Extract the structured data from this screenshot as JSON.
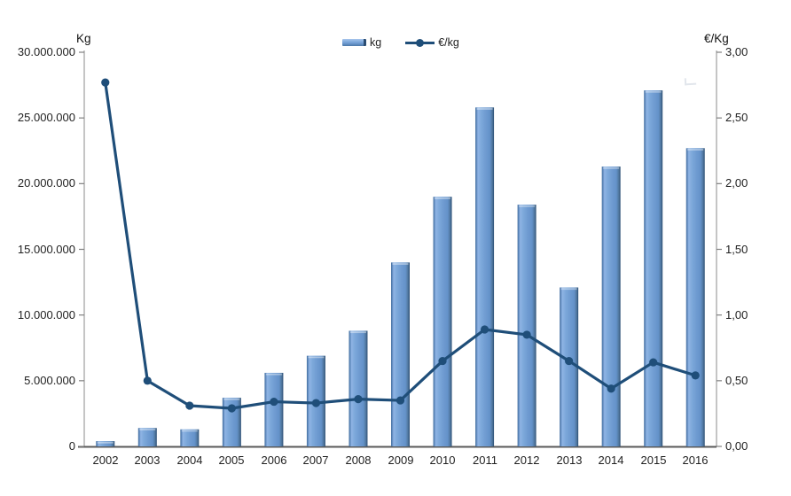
{
  "chart_data": {
    "type": "bar",
    "subtype": "combo-bar-line",
    "title": "",
    "categories": [
      "2002",
      "2003",
      "2004",
      "2005",
      "2006",
      "2007",
      "2008",
      "2009",
      "2010",
      "2011",
      "2012",
      "2013",
      "2014",
      "2015",
      "2016"
    ],
    "series": [
      {
        "name": "kg",
        "type": "bar",
        "axis": "left",
        "values": [
          400000,
          1400000,
          1300000,
          3700000,
          5600000,
          6900000,
          8800000,
          14000000,
          19000000,
          25800000,
          18400000,
          12100000,
          21300000,
          27100000,
          22700000
        ]
      },
      {
        "name": "€/kg",
        "type": "line",
        "axis": "right",
        "values": [
          2.77,
          0.5,
          0.31,
          0.29,
          0.34,
          0.33,
          0.36,
          0.35,
          0.65,
          0.89,
          0.85,
          0.65,
          0.44,
          0.64,
          0.54
        ]
      }
    ],
    "xlabel": "",
    "ylabel_left": "Kg",
    "ylabel_right": "€/Kg",
    "y_left": {
      "min": 0,
      "max": 30000000,
      "tick_labels": [
        "0",
        "5.000.000",
        "10.000.000",
        "15.000.000",
        "20.000.000",
        "25.000.000",
        "30.000.000"
      ]
    },
    "y_right": {
      "min": 0,
      "max": 3,
      "tick_labels": [
        "0,00",
        "0,50",
        "1,00",
        "1,50",
        "2,00",
        "2,50",
        "3,00"
      ]
    },
    "grid": false,
    "legend_position": "top-center"
  },
  "colors": {
    "bar_main": "#6f9bd1",
    "bar_highlight": "#8fb4e4",
    "bar_shadow": "#2b4d72",
    "line": "#1f4e79",
    "axis_side": "#a6a6a6",
    "axis_bottom": "#595959",
    "tick": "#808080",
    "text": "#1f1f1f"
  }
}
